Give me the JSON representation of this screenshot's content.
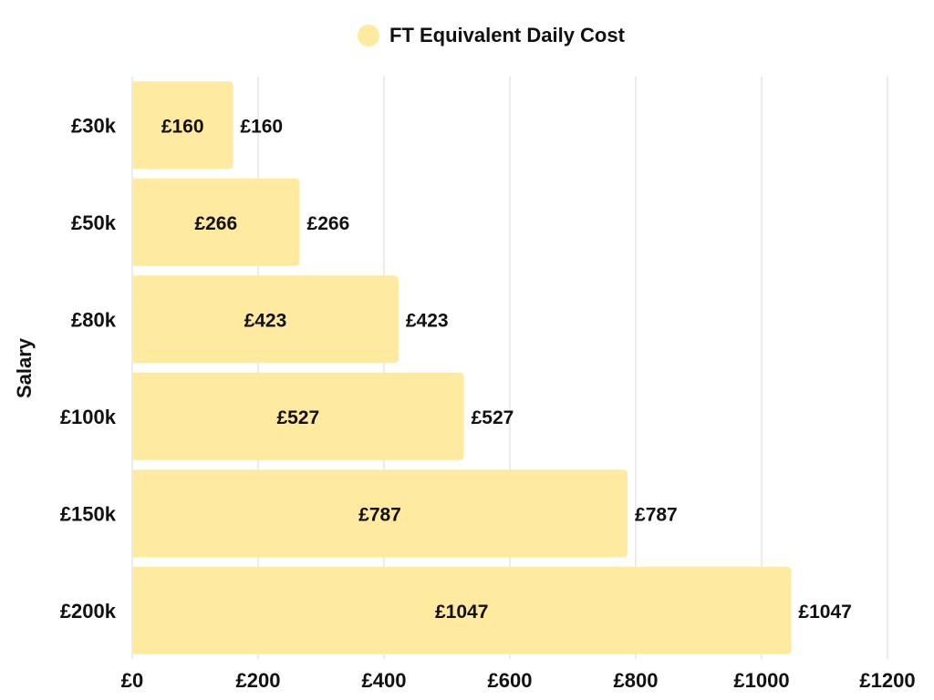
{
  "legend": {
    "label": "FT Equivalent Daily Cost"
  },
  "chart_data": {
    "type": "bar",
    "orientation": "horizontal",
    "categories": [
      "£30k",
      "£50k",
      "£80k",
      "£100k",
      "£150k",
      "£200k"
    ],
    "series": [
      {
        "name": "FT Equivalent Daily Cost",
        "values": [
          160,
          266,
          423,
          527,
          787,
          1047
        ],
        "color": "#ffeaa0"
      }
    ],
    "inner_labels": [
      "£160",
      "£266",
      "£423",
      "£527",
      "£787",
      "£1047"
    ],
    "outer_labels": [
      "£160",
      "£266",
      "£423",
      "£527",
      "£787",
      "£1047"
    ],
    "x_ticks": [
      "£0",
      "£200",
      "£400",
      "£600",
      "£800",
      "£1000",
      "£1200"
    ],
    "x_tick_values": [
      0,
      200,
      400,
      600,
      800,
      1000,
      1200
    ],
    "xlim": [
      0,
      1200
    ],
    "ylabel": "Salary",
    "xlabel": "",
    "grid": "vertical",
    "legend_position": "top-center"
  }
}
